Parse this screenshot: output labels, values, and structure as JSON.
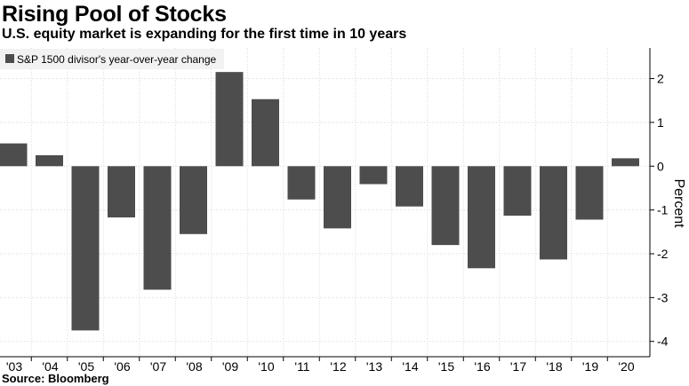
{
  "header": {
    "title": "Rising Pool of Stocks",
    "subtitle": "U.S. equity market is expanding for the first time in 10 years"
  },
  "footer": {
    "source": "Source: Bloomberg"
  },
  "colors": {
    "bar": "#4d4d4d",
    "grid": "#d9d9d9",
    "axis": "#000000"
  },
  "chart_data": {
    "type": "bar",
    "title": "Rising Pool of Stocks",
    "subtitle": "U.S. equity market is expanding for the first time in 10 years",
    "categories": [
      "'03",
      "'04",
      "'05",
      "'06",
      "'07",
      "'08",
      "'09",
      "'10",
      "'11",
      "'12",
      "'13",
      "'14",
      "'15",
      "'16",
      "'17",
      "'18",
      "'19",
      "'20"
    ],
    "series": [
      {
        "name": "S&P 1500 divisor's year-over-year change",
        "values": [
          0.52,
          0.25,
          -3.75,
          -1.17,
          -2.82,
          -1.55,
          2.15,
          1.53,
          -0.76,
          -1.42,
          -0.41,
          -0.92,
          -1.8,
          -2.33,
          -1.13,
          -2.13,
          -1.22,
          0.18
        ]
      }
    ],
    "xlabel": "",
    "ylabel": "Percent",
    "ylim": [
      -4.35,
      2.7
    ],
    "yticks": [
      -4,
      -3,
      -2,
      -1,
      0,
      1,
      2
    ],
    "ytick_labels": [
      "-4",
      "-3",
      "-2",
      "-1",
      "0",
      "1",
      "2"
    ],
    "grid": true,
    "legend": "top-left",
    "y_axis_side": "right"
  }
}
